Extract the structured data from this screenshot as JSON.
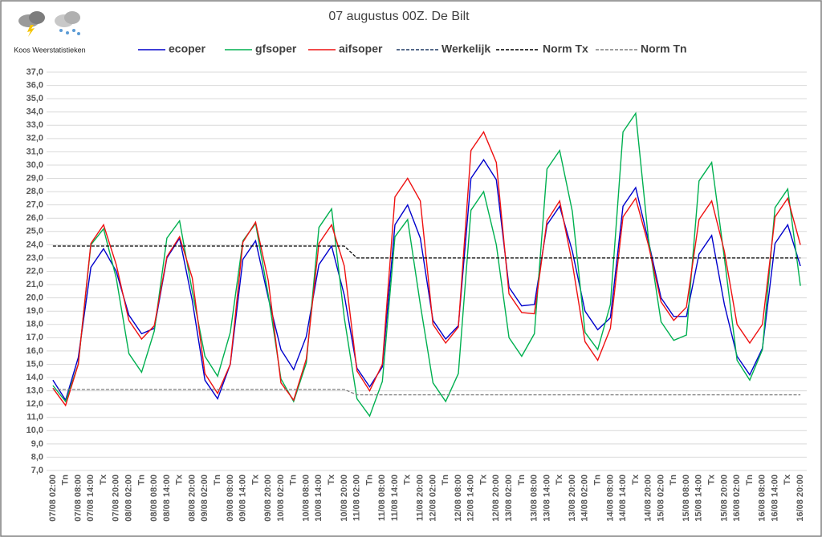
{
  "brand": "Koos Weerstatistieken",
  "chart_data": {
    "type": "line",
    "title": "07 augustus 00Z. De Bilt",
    "categories": [
      "07/08 02:00",
      "Tn",
      "07/08 08:00",
      "07/08 14:00",
      "Tx",
      "07/08 20:00",
      "08/08 02:00",
      "Tn",
      "08/08 08:00",
      "08/08 14:00",
      "Tx",
      "08/08 20:00",
      "09/08 02:00",
      "Tn",
      "09/08 08:00",
      "09/08 14:00",
      "Tx",
      "09/08 20:00",
      "10/08 02:00",
      "Tn",
      "10/08 08:00",
      "10/08 14:00",
      "Tx",
      "10/08 20:00",
      "11/08 02:00",
      "Tn",
      "11/08 08:00",
      "11/08 14:00",
      "Tx",
      "11/08 20:00",
      "12/08 02:00",
      "Tn",
      "12/08 08:00",
      "12/08 14:00",
      "Tx",
      "12/08 20:00",
      "13/08 02:00",
      "Tn",
      "13/08 08:00",
      "13/08 14:00",
      "Tx",
      "13/08 20:00",
      "14/08 02:00",
      "Tn",
      "14/08 08:00",
      "14/08 14:00",
      "Tx",
      "14/08 20:00",
      "15/08 02:00",
      "Tn",
      "15/08 08:00",
      "15/08 14:00",
      "Tx",
      "15/08 20:00",
      "16/08 02:00",
      "Tn",
      "16/08 08:00",
      "16/08 14:00",
      "Tx",
      "16/08 20:00"
    ],
    "series": [
      {
        "name": "ecoper",
        "color": "#0000cc",
        "dashed": false,
        "values": [
          13.8,
          12.3,
          15.5,
          22.3,
          23.7,
          22.0,
          18.7,
          17.3,
          17.7,
          23.0,
          24.5,
          19.8,
          13.8,
          12.4,
          15.0,
          22.9,
          24.3,
          20.0,
          16.1,
          14.6,
          17.1,
          22.5,
          23.9,
          20.2,
          14.7,
          13.3,
          14.8,
          25.5,
          27.0,
          24.5,
          18.3,
          16.9,
          17.9,
          29.0,
          30.4,
          28.9,
          20.8,
          19.4,
          19.5,
          25.5,
          26.9,
          23.5,
          19.0,
          17.6,
          18.5,
          26.9,
          28.3,
          24.3,
          20.0,
          18.6,
          18.6,
          23.3,
          24.7,
          19.5,
          15.6,
          14.2,
          16.2,
          24.1,
          25.5,
          22.4
        ]
      },
      {
        "name": "gfsoper",
        "color": "#00b050",
        "dashed": false,
        "values": [
          13.4,
          12.2,
          15.0,
          24.0,
          25.2,
          21.5,
          15.8,
          14.4,
          17.5,
          24.5,
          25.8,
          20.5,
          15.6,
          14.1,
          17.4,
          24.3,
          25.6,
          20.2,
          13.9,
          12.2,
          15.1,
          25.3,
          26.7,
          18.5,
          12.4,
          11.1,
          13.7,
          24.6,
          25.9,
          19.5,
          13.6,
          12.2,
          14.3,
          26.6,
          28.0,
          24.0,
          17.0,
          15.6,
          17.3,
          29.7,
          31.1,
          26.5,
          17.4,
          16.1,
          19.5,
          32.5,
          33.9,
          24.5,
          18.2,
          16.8,
          17.2,
          28.8,
          30.2,
          23.0,
          15.3,
          13.8,
          16.1,
          26.8,
          28.2,
          20.9
        ]
      },
      {
        "name": "aifsoper",
        "color": "#ee1111",
        "dashed": false,
        "values": [
          13.2,
          11.9,
          15.0,
          24.1,
          25.5,
          22.5,
          18.3,
          16.9,
          17.9,
          23.1,
          24.6,
          21.5,
          14.3,
          12.8,
          15.0,
          24.2,
          25.7,
          21.3,
          13.6,
          12.3,
          15.4,
          24.1,
          25.5,
          22.4,
          14.5,
          13.0,
          15.0,
          27.6,
          29.0,
          27.3,
          18.0,
          16.6,
          17.8,
          31.1,
          32.5,
          30.2,
          20.3,
          18.9,
          18.8,
          25.8,
          27.3,
          22.6,
          16.7,
          15.3,
          17.7,
          26.1,
          27.5,
          24.0,
          19.7,
          18.3,
          19.3,
          25.9,
          27.3,
          23.5,
          18.0,
          16.6,
          18.0,
          26.1,
          27.5,
          24.0
        ]
      },
      {
        "name": "Werkelijk",
        "color": "#1f3864",
        "dashed": true,
        "values": [
          null,
          null,
          null,
          null,
          null,
          null,
          null,
          null,
          null,
          null,
          null,
          null,
          null,
          null,
          null,
          null,
          null,
          null,
          null,
          null,
          null,
          null,
          null,
          null,
          null,
          null,
          null,
          null,
          null,
          null,
          null,
          null,
          null,
          null,
          null,
          null,
          null,
          null,
          null,
          null,
          null,
          null,
          null,
          null,
          null,
          null,
          null,
          null,
          null,
          null,
          null,
          null,
          null,
          null,
          null,
          null,
          null,
          null,
          null,
          null
        ]
      },
      {
        "name": "Norm Tx",
        "color": "#000000",
        "dashed": true,
        "values": [
          23.9,
          23.9,
          23.9,
          23.9,
          23.9,
          23.9,
          23.9,
          23.9,
          23.9,
          23.9,
          23.9,
          23.9,
          23.9,
          23.9,
          23.9,
          23.9,
          23.9,
          23.9,
          23.9,
          23.9,
          23.9,
          23.9,
          23.9,
          23.9,
          23.0,
          23.0,
          23.0,
          23.0,
          23.0,
          23.0,
          23.0,
          23.0,
          23.0,
          23.0,
          23.0,
          23.0,
          23.0,
          23.0,
          23.0,
          23.0,
          23.0,
          23.0,
          23.0,
          23.0,
          23.0,
          23.0,
          23.0,
          23.0,
          23.0,
          23.0,
          23.0,
          23.0,
          23.0,
          23.0,
          23.0,
          23.0,
          23.0,
          23.0,
          23.0,
          23.0
        ]
      },
      {
        "name": "Norm Tn",
        "color": "#7f7f7f",
        "dashed": true,
        "values": [
          13.1,
          13.1,
          13.1,
          13.1,
          13.1,
          13.1,
          13.1,
          13.1,
          13.1,
          13.1,
          13.1,
          13.1,
          13.1,
          13.1,
          13.1,
          13.1,
          13.1,
          13.1,
          13.1,
          13.1,
          13.1,
          13.1,
          13.1,
          13.1,
          12.7,
          12.7,
          12.7,
          12.7,
          12.7,
          12.7,
          12.7,
          12.7,
          12.7,
          12.7,
          12.7,
          12.7,
          12.7,
          12.7,
          12.7,
          12.7,
          12.7,
          12.7,
          12.7,
          12.7,
          12.7,
          12.7,
          12.7,
          12.7,
          12.7,
          12.7,
          12.7,
          12.7,
          12.7,
          12.7,
          12.7,
          12.7,
          12.7,
          12.7,
          12.7,
          12.7
        ]
      }
    ],
    "ylim": [
      7,
      37
    ],
    "yticks": [
      {
        "value": 7,
        "label": "7,0"
      },
      {
        "value": 8,
        "label": "8,0"
      },
      {
        "value": 9,
        "label": "9,0"
      },
      {
        "value": 10,
        "label": "10,0"
      },
      {
        "value": 11,
        "label": "11,0"
      },
      {
        "value": 12,
        "label": "12,0"
      },
      {
        "value": 13,
        "label": "13,0"
      },
      {
        "value": 14,
        "label": "14,0"
      },
      {
        "value": 15,
        "label": "15,0"
      },
      {
        "value": 16,
        "label": "16,0"
      },
      {
        "value": 17,
        "label": "17,0"
      },
      {
        "value": 18,
        "label": "18,0"
      },
      {
        "value": 19,
        "label": "19,0"
      },
      {
        "value": 20,
        "label": "20,0"
      },
      {
        "value": 21,
        "label": "21,0"
      },
      {
        "value": 22,
        "label": "22,0"
      },
      {
        "value": 23,
        "label": "23,0"
      },
      {
        "value": 24,
        "label": "24,0"
      },
      {
        "value": 25,
        "label": "25,0"
      },
      {
        "value": 26,
        "label": "26,0"
      },
      {
        "value": 27,
        "label": "27,0"
      },
      {
        "value": 28,
        "label": "28,0"
      },
      {
        "value": 29,
        "label": "29,0"
      },
      {
        "value": 30,
        "label": "30,0"
      },
      {
        "value": 31,
        "label": "31,0"
      },
      {
        "value": 32,
        "label": "32,0"
      },
      {
        "value": 33,
        "label": "33,0"
      },
      {
        "value": 34,
        "label": "34,0"
      },
      {
        "value": 35,
        "label": "35,0"
      },
      {
        "value": 36,
        "label": "36,0"
      },
      {
        "value": 37,
        "label": "37,0"
      }
    ],
    "grid": true,
    "legend": "top"
  }
}
